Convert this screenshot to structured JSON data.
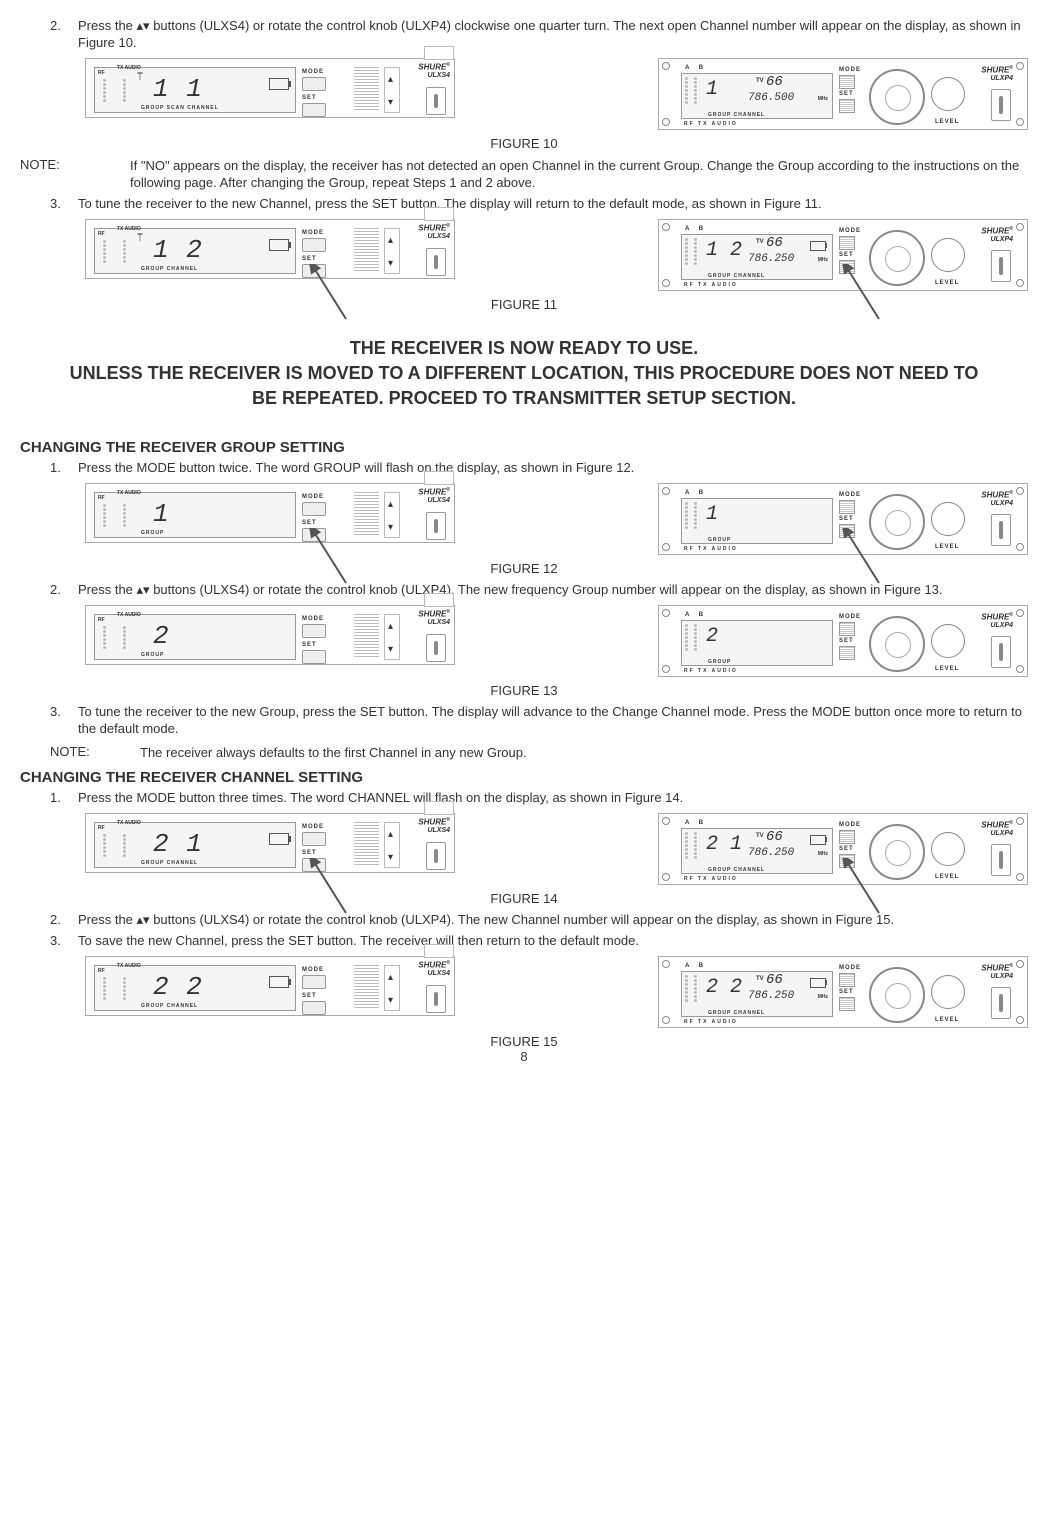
{
  "page_number": "8",
  "brand": "SHURE",
  "models": {
    "ulxs4": "ULXS4",
    "ulxp4": "ULXP4"
  },
  "panel_labels": {
    "mode": "MODE",
    "set": "SET",
    "level": "LEVEL",
    "rf": "RF",
    "audio": "TX\nAUDIO",
    "ab": "A   B",
    "rf_tx_audio": "RF  TX AUDIO"
  },
  "steps": {
    "s2a": "2.",
    "s2a_text": "Press the  ▴▾  buttons (ULXS4) or rotate the control knob (ULXP4) clockwise one quarter turn. The next open Channel number will appear on the display, as shown in Figure 10.",
    "s3a": "3.",
    "s3a_text": "To tune the receiver to the new Channel, press the SET button. The display will return to the default mode, as shown in Figure 11.",
    "note1_label": "NOTE:",
    "note1_text": "If \"NO\" appears on the display, the receiver has not detected an open Channel in the current Group. Change the Group according to the instructions on the following page.  After changing the Group, repeat Steps 1 and 2 above.",
    "grp1": "1.",
    "grp1_text": "Press the MODE button twice. The word GROUP will flash on the display, as shown in Figure 12.",
    "grp2": "2.",
    "grp2_text": "Press the  ▴▾  buttons (ULXS4) or rotate the control knob (ULXP4). The new frequency Group number will appear on the display, as shown in Figure 13.",
    "grp3": "3.",
    "grp3_text": "To tune the receiver to the new Group, press the SET button. The display will advance to the Change Channel mode. Press the MODE button once more to return to the default mode.",
    "note2_label": "NOTE:",
    "note2_text": "The receiver always defaults to the first Channel in any new Group.",
    "ch1": "1.",
    "ch1_text": "Press the MODE button three times. The word CHANNEL will flash on the display, as shown in Figure 14.",
    "ch2": "2.",
    "ch2_text": "Press the  ▴▾  buttons (ULXS4) or rotate the control knob (ULXP4). The new Channel number will appear on the display, as shown in Figure 15.",
    "ch3": "3.",
    "ch3_text": "To save the new Channel, press the SET button. The receiver will then return to the default mode."
  },
  "captions": {
    "f10": "FIGURE 10",
    "f11": "FIGURE 11",
    "f12": "FIGURE 12",
    "f13": "FIGURE 13",
    "f14": "FIGURE 14",
    "f15": "FIGURE 15"
  },
  "ready_msg_l1": "THE RECEIVER IS NOW READY TO USE.",
  "ready_msg_l2": "UNLESS THE RECEIVER IS MOVED TO A DIFFERENT LOCATION, THIS PROCEDURE DOES NOT NEED TO BE REPEATED. PROCEED TO TRANSMITTER SETUP SECTION.",
  "headings": {
    "grp": "CHANGING THE RECEIVER GROUP SETTING",
    "ch": "CHANGING THE RECEIVER CHANNEL SETTING"
  },
  "figures": {
    "f10": {
      "ulxs4": {
        "digits": "1 1",
        "labels": "GROUP SCAN CHANNEL",
        "show_batt": true,
        "show_ant": true
      },
      "ulxp4": {
        "digits": "1",
        "tv": "66",
        "freq": "786.500",
        "labels": "GROUP  CHANNEL",
        "show_batt": false
      }
    },
    "f11": {
      "ulxs4": {
        "digits": "1 2",
        "labels": "GROUP      CHANNEL",
        "show_batt": true,
        "show_ant": true,
        "pointer": true
      },
      "ulxp4": {
        "digits": "1 2",
        "tv": "66",
        "freq": "786.250",
        "labels": "GROUP  CHANNEL",
        "show_batt": true,
        "pointer": true
      }
    },
    "f12": {
      "ulxs4": {
        "digits": "1",
        "labels": "GROUP",
        "show_batt": false,
        "show_ant": false,
        "pointer": true
      },
      "ulxp4": {
        "digits": "1",
        "tv": "",
        "freq": "",
        "labels": "GROUP",
        "show_batt": false,
        "pointer": true
      }
    },
    "f13": {
      "ulxs4": {
        "digits": "2",
        "labels": "GROUP",
        "show_batt": false,
        "show_ant": false
      },
      "ulxp4": {
        "digits": "2",
        "tv": "",
        "freq": "",
        "labels": "GROUP",
        "show_batt": false
      }
    },
    "f14": {
      "ulxs4": {
        "digits": "2 1",
        "labels": "GROUP      CHANNEL",
        "show_batt": true,
        "show_ant": false,
        "pointer": true
      },
      "ulxp4": {
        "digits": "2 1",
        "tv": "66",
        "freq": "786.250",
        "labels": "GROUP  CHANNEL",
        "show_batt": true,
        "pointer": true
      }
    },
    "f15": {
      "ulxs4": {
        "digits": "2 2",
        "labels": "GROUP      CHANNEL",
        "show_batt": true,
        "show_ant": false
      },
      "ulxp4": {
        "digits": "2 2",
        "tv": "66",
        "freq": "786.250",
        "labels": "GROUP  CHANNEL",
        "show_batt": true
      }
    }
  },
  "colors": {
    "text": "#333333",
    "panel_border": "#aaaaaa",
    "lcd_bg": "#f5f5f5"
  }
}
